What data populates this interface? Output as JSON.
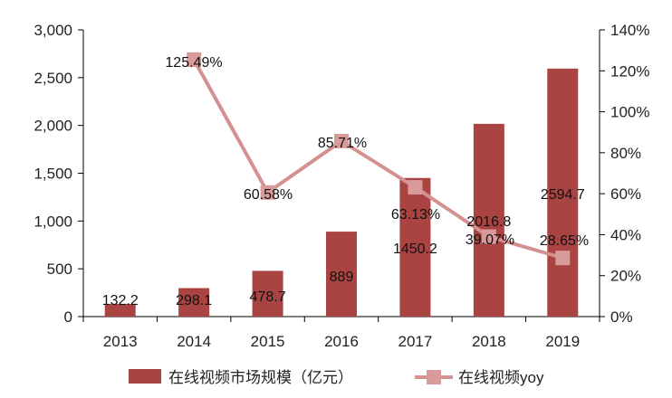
{
  "chart_data": {
    "type": "bar",
    "categories": [
      "2013",
      "2014",
      "2015",
      "2016",
      "2017",
      "2018",
      "2019"
    ],
    "series": [
      {
        "name": "在线视频市场规模（亿元）",
        "type": "bar",
        "axis": "left",
        "values": [
          132.2,
          298.1,
          478.7,
          889,
          1450.2,
          2016.8,
          2594.7
        ],
        "labels": [
          "132.2",
          "298.1",
          "478.7",
          "889",
          "1450.2",
          "2016.8",
          "2594.7"
        ]
      },
      {
        "name": "在线视频yoy",
        "type": "line",
        "axis": "right",
        "x": [
          "2014",
          "2015",
          "2016",
          "2017",
          "2018",
          "2019"
        ],
        "values": [
          125.49,
          60.58,
          85.71,
          63.13,
          39.07,
          28.65
        ],
        "labels": [
          "125.49%",
          "60.58%",
          "85.71%",
          "63.13%",
          "39.07%",
          "28.65%"
        ]
      }
    ],
    "left_axis": {
      "ylim": [
        0,
        3000
      ],
      "ticks": [
        0,
        500,
        1000,
        1500,
        2000,
        2500,
        3000
      ],
      "tick_labels": [
        "0",
        "500",
        "1,000",
        "1,500",
        "2,000",
        "2,500",
        "3,000"
      ]
    },
    "right_axis": {
      "ylim": [
        0,
        140
      ],
      "ticks": [
        0,
        20,
        40,
        60,
        80,
        100,
        120,
        140
      ],
      "tick_labels": [
        "0%",
        "20%",
        "40%",
        "60%",
        "80%",
        "100%",
        "120%",
        "140%"
      ]
    },
    "grid": false,
    "legend_position": "bottom",
    "colors": {
      "bar": "#a94442",
      "line": "#d49191",
      "marker": "#d99a9a",
      "axis": "#000000"
    }
  }
}
